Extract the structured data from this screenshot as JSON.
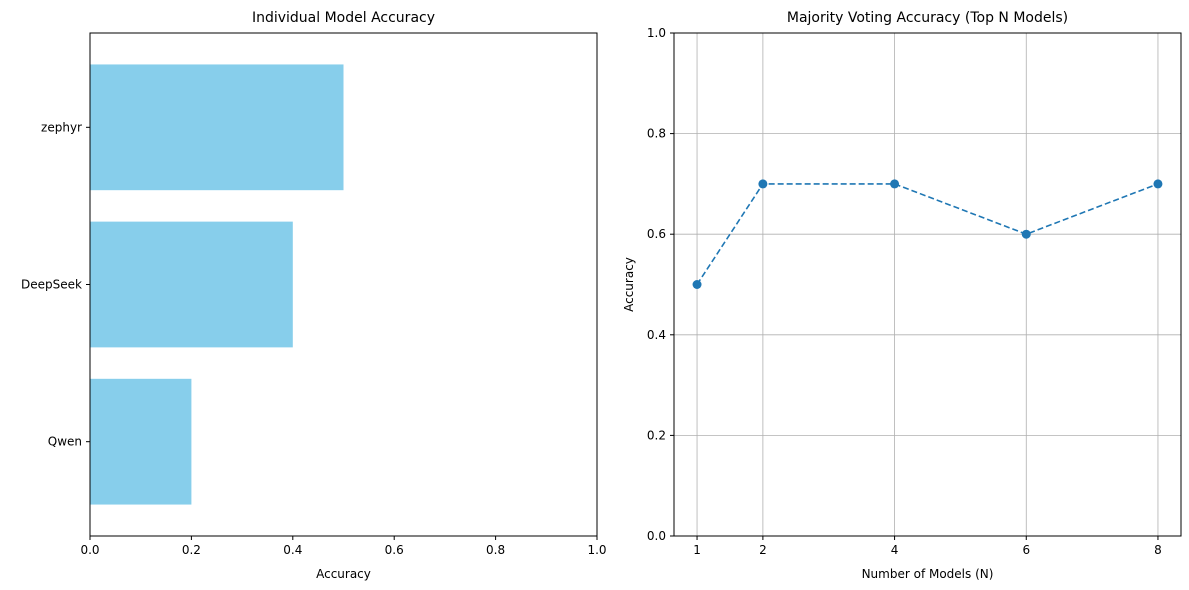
{
  "chart_data": [
    {
      "type": "bar",
      "orientation": "horizontal",
      "title": "Individual Model Accuracy",
      "xlabel": "Accuracy",
      "ylabel": "",
      "categories": [
        "Qwen",
        "DeepSeek",
        "zephyr"
      ],
      "values": [
        0.2,
        0.4,
        0.5
      ],
      "xlim": [
        0,
        1
      ],
      "xticks": [
        0.0,
        0.2,
        0.4,
        0.6,
        0.8,
        1.0
      ],
      "xtick_labels": [
        "0.0",
        "0.2",
        "0.4",
        "0.6",
        "0.8",
        "1.0"
      ],
      "bar_color": "#87ceeb",
      "grid": false
    },
    {
      "type": "line",
      "title": "Majority Voting Accuracy (Top N Models)",
      "xlabel": "Number of Models (N)",
      "ylabel": "Accuracy",
      "x": [
        1,
        2,
        4,
        6,
        8
      ],
      "y": [
        0.5,
        0.7,
        0.7,
        0.6,
        0.7
      ],
      "xticks": [
        1,
        2,
        4,
        6,
        8
      ],
      "xtick_labels": [
        "1",
        "2",
        "4",
        "6",
        "8"
      ],
      "ylim": [
        0,
        1
      ],
      "yticks": [
        0.0,
        0.2,
        0.4,
        0.6,
        0.8,
        1.0
      ],
      "ytick_labels": [
        "0.0",
        "0.2",
        "0.4",
        "0.6",
        "0.8",
        "1.0"
      ],
      "line_style": "dashed",
      "marker": "circle",
      "line_color": "#1f77b4",
      "grid": true
    }
  ]
}
